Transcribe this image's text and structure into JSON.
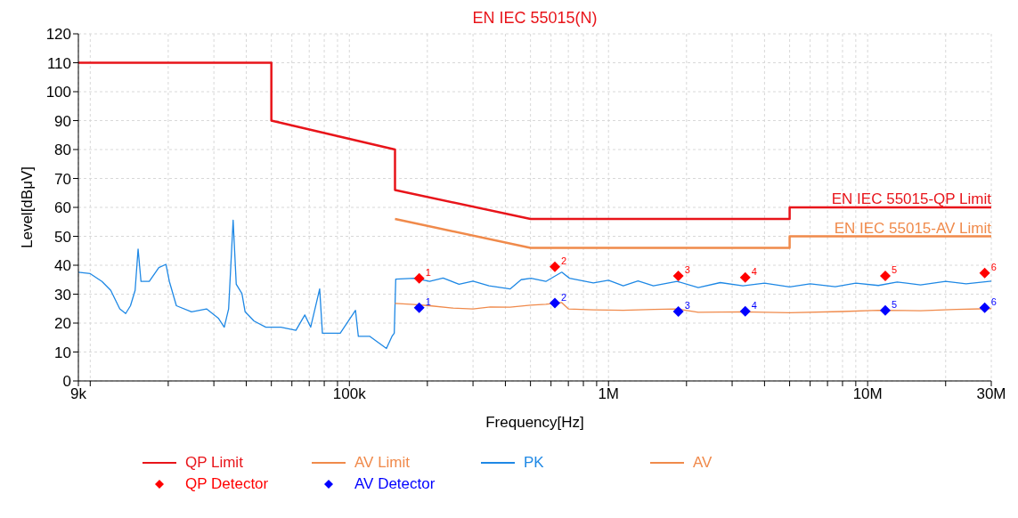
{
  "chart_data": {
    "type": "line",
    "title": "EN IEC 55015(N)",
    "xlabel": "Frequency[Hz]",
    "ylabel": "Level[dBμV]",
    "log": "x",
    "grid": true,
    "legend": "bottom left",
    "line_style": "solid",
    "xlim": [
      9000,
      30000000
    ],
    "ylim": [
      0,
      120
    ],
    "xticks": [
      {
        "value": 9000,
        "label": "9k"
      },
      {
        "value": 10000,
        "label": null
      },
      {
        "value": 20000,
        "label": null
      },
      {
        "value": 30000,
        "label": null
      },
      {
        "value": 40000,
        "label": null
      },
      {
        "value": 50000,
        "label": null
      },
      {
        "value": 60000,
        "label": null
      },
      {
        "value": 70000,
        "label": null
      },
      {
        "value": 80000,
        "label": null
      },
      {
        "value": 90000,
        "label": null
      },
      {
        "value": 100000,
        "label": "100k"
      },
      {
        "value": 200000,
        "label": null
      },
      {
        "value": 300000,
        "label": null
      },
      {
        "value": 400000,
        "label": null
      },
      {
        "value": 500000,
        "label": null
      },
      {
        "value": 600000,
        "label": null
      },
      {
        "value": 700000,
        "label": null
      },
      {
        "value": 800000,
        "label": null
      },
      {
        "value": 900000,
        "label": null
      },
      {
        "value": 1000000,
        "label": "1M"
      },
      {
        "value": 2000000,
        "label": null
      },
      {
        "value": 3000000,
        "label": null
      },
      {
        "value": 4000000,
        "label": null
      },
      {
        "value": 5000000,
        "label": null
      },
      {
        "value": 6000000,
        "label": null
      },
      {
        "value": 7000000,
        "label": null
      },
      {
        "value": 8000000,
        "label": null
      },
      {
        "value": 9000000,
        "label": null
      },
      {
        "value": 10000000,
        "label": "10M"
      },
      {
        "value": 20000000,
        "label": null
      },
      {
        "value": 30000000,
        "label": "30M"
      }
    ],
    "yticks": [
      0,
      10,
      20,
      30,
      40,
      50,
      60,
      70,
      80,
      90,
      100,
      110,
      120
    ],
    "series": [
      {
        "name": "QP Limit",
        "color": "#e8141a",
        "x": [
          9000,
          50000,
          50000,
          150000,
          150000,
          500000,
          5000000,
          5000000,
          30000000
        ],
        "values": [
          110,
          110,
          90,
          80,
          66,
          56,
          56,
          60,
          60
        ]
      },
      {
        "name": "AV Limit",
        "color": "#f08a4b",
        "x": [
          150000,
          500000,
          5000000,
          5000000,
          30000000
        ],
        "values": [
          56,
          46,
          46,
          50,
          50
        ]
      },
      {
        "name": "PK",
        "color": "#1e88e5",
        "x": [
          9000,
          10000,
          11100,
          12000,
          13000,
          13700,
          14300,
          14900,
          15300,
          15700,
          16900,
          18400,
          19600,
          20200,
          21500,
          24600,
          28100,
          31200,
          32900,
          34200,
          35600,
          36600,
          38500,
          39600,
          42900,
          47600,
          54400,
          62200,
          67300,
          70900,
          76800,
          78700,
          92200,
          105600,
          108300,
          120000,
          139000,
          146000,
          149000,
          151000,
          178000,
          204000,
          230000,
          265000,
          300000,
          346000,
          417000,
          460000,
          502000,
          573000,
          660000,
          707000,
          874000,
          1000000,
          1140000,
          1300000,
          1490000,
          1840000,
          2220000,
          2700000,
          3300000,
          4000000,
          5000000,
          6000000,
          7500000,
          9000000,
          11000000,
          13000000,
          16000000,
          20000000,
          24000000,
          30000000
        ],
        "values": [
          37.6,
          37.1,
          34.4,
          31.3,
          24.9,
          23.3,
          26.0,
          31.3,
          45.6,
          34.4,
          34.4,
          39.2,
          40.3,
          34.4,
          26.0,
          23.9,
          24.9,
          21.7,
          18.6,
          24.9,
          55.6,
          33.4,
          30.2,
          23.9,
          20.7,
          18.6,
          18.6,
          17.5,
          22.8,
          18.6,
          31.8,
          16.5,
          16.5,
          24.4,
          15.4,
          15.4,
          11.2,
          15.4,
          16.5,
          35.2,
          35.5,
          34.4,
          35.6,
          33.4,
          34.5,
          32.9,
          31.8,
          35.0,
          35.5,
          34.4,
          37.6,
          35.5,
          33.9,
          34.8,
          32.9,
          34.6,
          32.9,
          34.4,
          32.3,
          34.0,
          32.9,
          33.8,
          32.5,
          33.6,
          32.6,
          33.8,
          33.0,
          34.2,
          33.2,
          34.4,
          33.6,
          34.5
        ]
      },
      {
        "name": "AV",
        "color": "#f08a4b",
        "x": [
          150000,
          178000,
          204000,
          250000,
          300000,
          350000,
          417000,
          500000,
          573000,
          660000,
          700000,
          874000,
          1140000,
          1500000,
          1840000,
          2220000,
          3300000,
          5000000,
          8000000,
          11000000,
          16000000,
          22000000,
          30000000
        ],
        "values": [
          26.8,
          26.4,
          26.0,
          25.2,
          24.9,
          25.6,
          25.5,
          26.2,
          26.5,
          27.1,
          24.9,
          24.6,
          24.4,
          24.7,
          24.9,
          23.7,
          23.9,
          23.6,
          24.0,
          24.4,
          24.3,
          24.7,
          25.0
        ]
      },
      {
        "name": "QP Detector",
        "type": "scatter",
        "marker": "diamond",
        "color": "#ff0000",
        "x": [
          186000,
          621000,
          1860000,
          3370000,
          11700000,
          28300000
        ],
        "values": [
          35.5,
          39.5,
          36.3,
          35.8,
          36.3,
          37.3
        ]
      },
      {
        "name": "AV Detector",
        "type": "scatter",
        "marker": "diamond",
        "color": "#0000ff",
        "x": [
          186000,
          621000,
          1860000,
          3370000,
          11700000,
          28300000
        ],
        "values": [
          25.3,
          26.9,
          24.0,
          24.1,
          24.4,
          25.3
        ]
      }
    ],
    "annotations": [
      {
        "text": "EN IEC 55015-QP Limit",
        "x": 30000000,
        "y": 60
      },
      {
        "text": "EN IEC 55015-AV Limit",
        "x": 30000000,
        "y": 50
      },
      {
        "text": "1",
        "x": 186000,
        "y": 35.5
      },
      {
        "text": "2",
        "x": 621000,
        "y": 39.5
      },
      {
        "text": "3",
        "x": 1860000,
        "y": 36.3
      },
      {
        "text": "4",
        "x": 3370000,
        "y": 35.8
      },
      {
        "text": "5",
        "x": 11700000,
        "y": 36.3
      },
      {
        "text": "6",
        "x": 28300000,
        "y": 37.3
      },
      {
        "text": "1",
        "x": 186000,
        "y": 25.3
      },
      {
        "text": "2",
        "x": 621000,
        "y": 26.9
      },
      {
        "text": "3",
        "x": 1860000,
        "y": 24.0
      },
      {
        "text": "4",
        "x": 3370000,
        "y": 24.1
      },
      {
        "text": "5",
        "x": 11700000,
        "y": 24.4
      },
      {
        "text": "6",
        "x": 28300000,
        "y": 25.3
      }
    ]
  }
}
